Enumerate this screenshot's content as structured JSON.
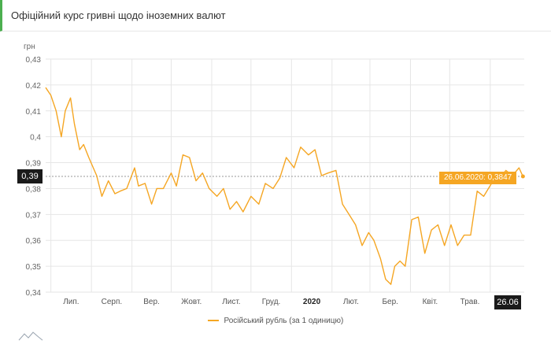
{
  "header": {
    "title": "Офіційний курс гривні щодо іноземних валют"
  },
  "cursor": {
    "date_label": "26.06",
    "y_marker": "0,39",
    "tooltip": "26.06.2020: 0,3847"
  },
  "colors": {
    "line": "#f5a623",
    "grid": "#e6e6e6",
    "accent": "#4caf50"
  },
  "chart_data": {
    "type": "line",
    "ylabel": "грн",
    "ylim": [
      0.34,
      0.43
    ],
    "yticks": [
      "0,43",
      "0,42",
      "0,41",
      "0,4",
      "0,39",
      "0,38",
      "0,37",
      "0,36",
      "0,35",
      "0,34"
    ],
    "xticks": [
      {
        "label": "Лип.",
        "bold": false
      },
      {
        "label": "Серп.",
        "bold": false
      },
      {
        "label": "Вер.",
        "bold": false
      },
      {
        "label": "Жовт.",
        "bold": false
      },
      {
        "label": "Лист.",
        "bold": false
      },
      {
        "label": "Груд.",
        "bold": false
      },
      {
        "label": "2020",
        "bold": true
      },
      {
        "label": "Лют.",
        "bold": false
      },
      {
        "label": "Бер.",
        "bold": false
      },
      {
        "label": "Квіт.",
        "bold": false
      },
      {
        "label": "Трав.",
        "bold": false
      }
    ],
    "series": [
      {
        "name": "Російський рубль (за 1 одиницю)",
        "x": [
          "2019-06-27",
          "2019-07-01",
          "2019-07-05",
          "2019-07-09",
          "2019-07-12",
          "2019-07-16",
          "2019-07-19",
          "2019-07-23",
          "2019-07-26",
          "2019-07-30",
          "2019-08-05",
          "2019-08-09",
          "2019-08-14",
          "2019-08-19",
          "2019-08-23",
          "2019-08-28",
          "2019-09-03",
          "2019-09-06",
          "2019-09-11",
          "2019-09-16",
          "2019-09-20",
          "2019-09-25",
          "2019-10-01",
          "2019-10-05",
          "2019-10-10",
          "2019-10-15",
          "2019-10-20",
          "2019-10-25",
          "2019-10-30",
          "2019-11-05",
          "2019-11-10",
          "2019-11-15",
          "2019-11-20",
          "2019-11-25",
          "2019-12-01",
          "2019-12-07",
          "2019-12-12",
          "2019-12-18",
          "2019-12-23",
          "2019-12-28",
          "2020-01-03",
          "2020-01-08",
          "2020-01-14",
          "2020-01-19",
          "2020-01-24",
          "2020-01-29",
          "2020-02-04",
          "2020-02-09",
          "2020-02-14",
          "2020-02-19",
          "2020-02-24",
          "2020-02-29",
          "2020-03-04",
          "2020-03-09",
          "2020-03-13",
          "2020-03-17",
          "2020-03-20",
          "2020-03-24",
          "2020-03-28",
          "2020-04-02",
          "2020-04-07",
          "2020-04-12",
          "2020-04-17",
          "2020-04-22",
          "2020-04-27",
          "2020-05-02",
          "2020-05-07",
          "2020-05-12",
          "2020-05-17",
          "2020-05-22",
          "2020-05-27",
          "2020-06-02",
          "2020-06-08",
          "2020-06-13",
          "2020-06-18",
          "2020-06-23",
          "2020-06-26"
        ],
        "values": [
          0.419,
          0.416,
          0.41,
          0.4,
          0.41,
          0.415,
          0.405,
          0.395,
          0.397,
          0.392,
          0.385,
          0.377,
          0.383,
          0.378,
          0.379,
          0.38,
          0.388,
          0.381,
          0.382,
          0.374,
          0.38,
          0.38,
          0.386,
          0.381,
          0.393,
          0.392,
          0.383,
          0.386,
          0.38,
          0.377,
          0.38,
          0.372,
          0.375,
          0.371,
          0.377,
          0.374,
          0.382,
          0.38,
          0.384,
          0.392,
          0.388,
          0.396,
          0.393,
          0.395,
          0.385,
          0.386,
          0.387,
          0.374,
          0.37,
          0.366,
          0.358,
          0.363,
          0.36,
          0.353,
          0.345,
          0.343,
          0.35,
          0.352,
          0.35,
          0.368,
          0.369,
          0.355,
          0.364,
          0.366,
          0.358,
          0.366,
          0.358,
          0.362,
          0.362,
          0.379,
          0.377,
          0.382,
          0.384,
          0.387,
          0.385,
          0.388,
          0.3847
        ]
      }
    ],
    "legend_position": "bottom",
    "grid": true
  }
}
